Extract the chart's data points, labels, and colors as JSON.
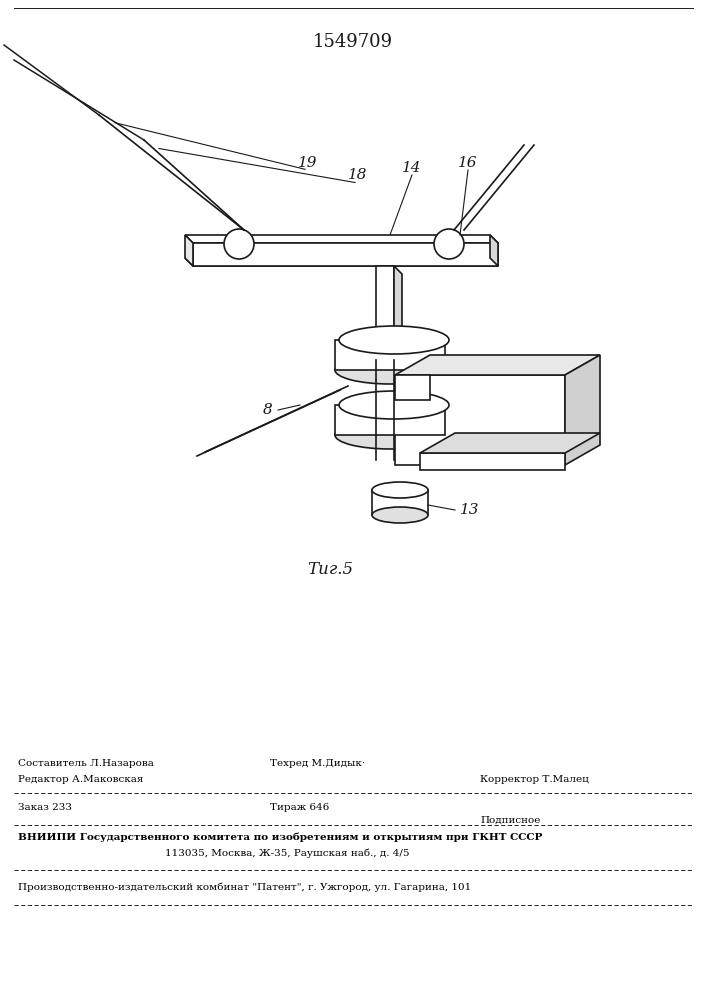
{
  "patent_number": "1549709",
  "fig_label": "Τиг.5",
  "bg_color": "#ffffff",
  "line_color": "#1a1a1a",
  "footer": {
    "composer": "Составитель Л.Назарова",
    "editor": "Редактор А.Маковская",
    "techred": "Техред М.Дидык·",
    "corrector": "Корректор Т.Малец",
    "order": "Заказ 233",
    "circulation": "Тираж 646",
    "subscription": "Подписное",
    "vniipii": "ВНИИПИ Государственного комитета по изобретениям и открытиям при ГКНТ СССР",
    "address": "113035, Москва, Ж-35, Раушская наб., д. 4/5",
    "publisher": "Производственно-издательский комбинат \"Патент\", г. Ужгород, ул. Гагарина, 101"
  }
}
